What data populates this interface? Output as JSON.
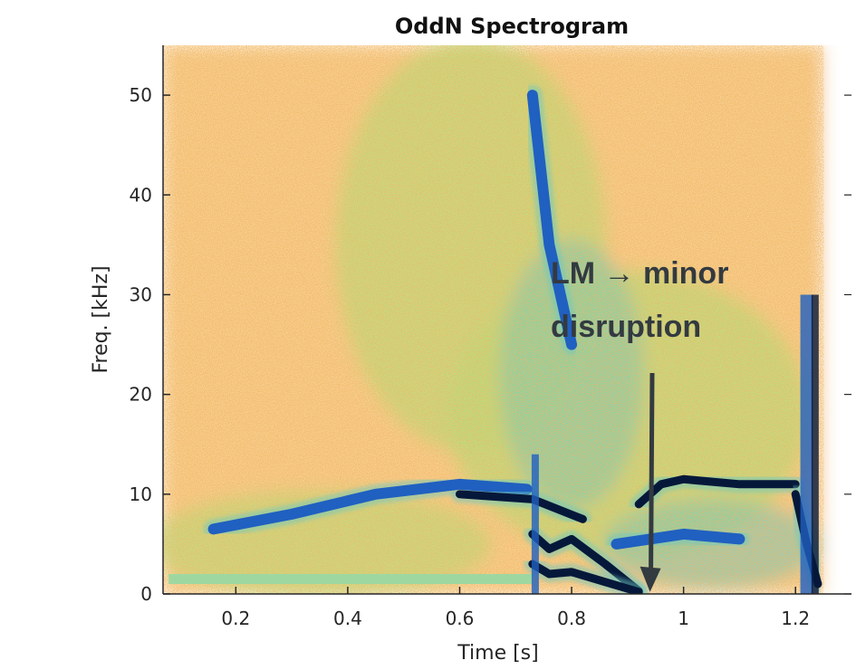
{
  "chart_data": {
    "type": "heatmap",
    "title": "OddN Spectrogram",
    "xlabel": "Time [s]",
    "ylabel": "Freq. [kHz]",
    "xlim": [
      0.07,
      1.3
    ],
    "ylim": [
      0,
      55
    ],
    "x_ticks": [
      0.2,
      0.4,
      0.6,
      0.8,
      1,
      1.2
    ],
    "x_tick_labels": [
      "0.2",
      "0.4",
      "0.6",
      "0.8",
      "1",
      "1.2"
    ],
    "y_ticks": [
      0,
      10,
      20,
      30,
      40,
      50
    ],
    "y_tick_labels": [
      "0",
      "10",
      "20",
      "30",
      "40",
      "50"
    ],
    "data_end_time": 1.25,
    "colors": {
      "background_noise": "#f0b060",
      "mid": "#b8dc7a",
      "cyan": "#6cc8c0",
      "blue": "#2060c0",
      "dark": "#06183a"
    },
    "mode_tracks": [
      {
        "x": [
          0.16,
          0.3,
          0.45,
          0.6,
          0.72
        ],
        "y": [
          6.5,
          8,
          10,
          11,
          10.5
        ],
        "level": "blue"
      },
      {
        "x": [
          0.6,
          0.73,
          0.82
        ],
        "y": [
          10,
          9.5,
          7.5
        ],
        "level": "dark"
      },
      {
        "x": [
          0.73,
          0.76,
          0.8,
          0.86,
          0.92
        ],
        "y": [
          6,
          4.5,
          5.5,
          3,
          0.3
        ],
        "level": "dark"
      },
      {
        "x": [
          0.73,
          0.76,
          0.8,
          0.86,
          0.92
        ],
        "y": [
          3,
          2,
          2.2,
          1.2,
          0.2
        ],
        "level": "dark"
      },
      {
        "x": [
          0.92,
          0.96,
          1.0,
          1.1,
          1.2
        ],
        "y": [
          9,
          11,
          11.5,
          11,
          11
        ],
        "level": "dark"
      },
      {
        "x": [
          1.2,
          1.22,
          1.24
        ],
        "y": [
          10,
          5,
          1
        ],
        "level": "dark"
      },
      {
        "x": [
          0.73,
          0.76,
          0.8
        ],
        "y": [
          50,
          35,
          25
        ],
        "level": "blue"
      },
      {
        "x": [
          0.88,
          1.0,
          1.1
        ],
        "y": [
          5,
          6,
          5.5
        ],
        "level": "blue"
      }
    ],
    "low_freq_band": {
      "x": [
        0.08,
        0.73
      ],
      "y": [
        1,
        2
      ]
    },
    "annotation": {
      "lines": [
        "LM → minor",
        "disruption"
      ],
      "arrow_to": {
        "x": 0.94,
        "y": 0.2
      }
    }
  }
}
